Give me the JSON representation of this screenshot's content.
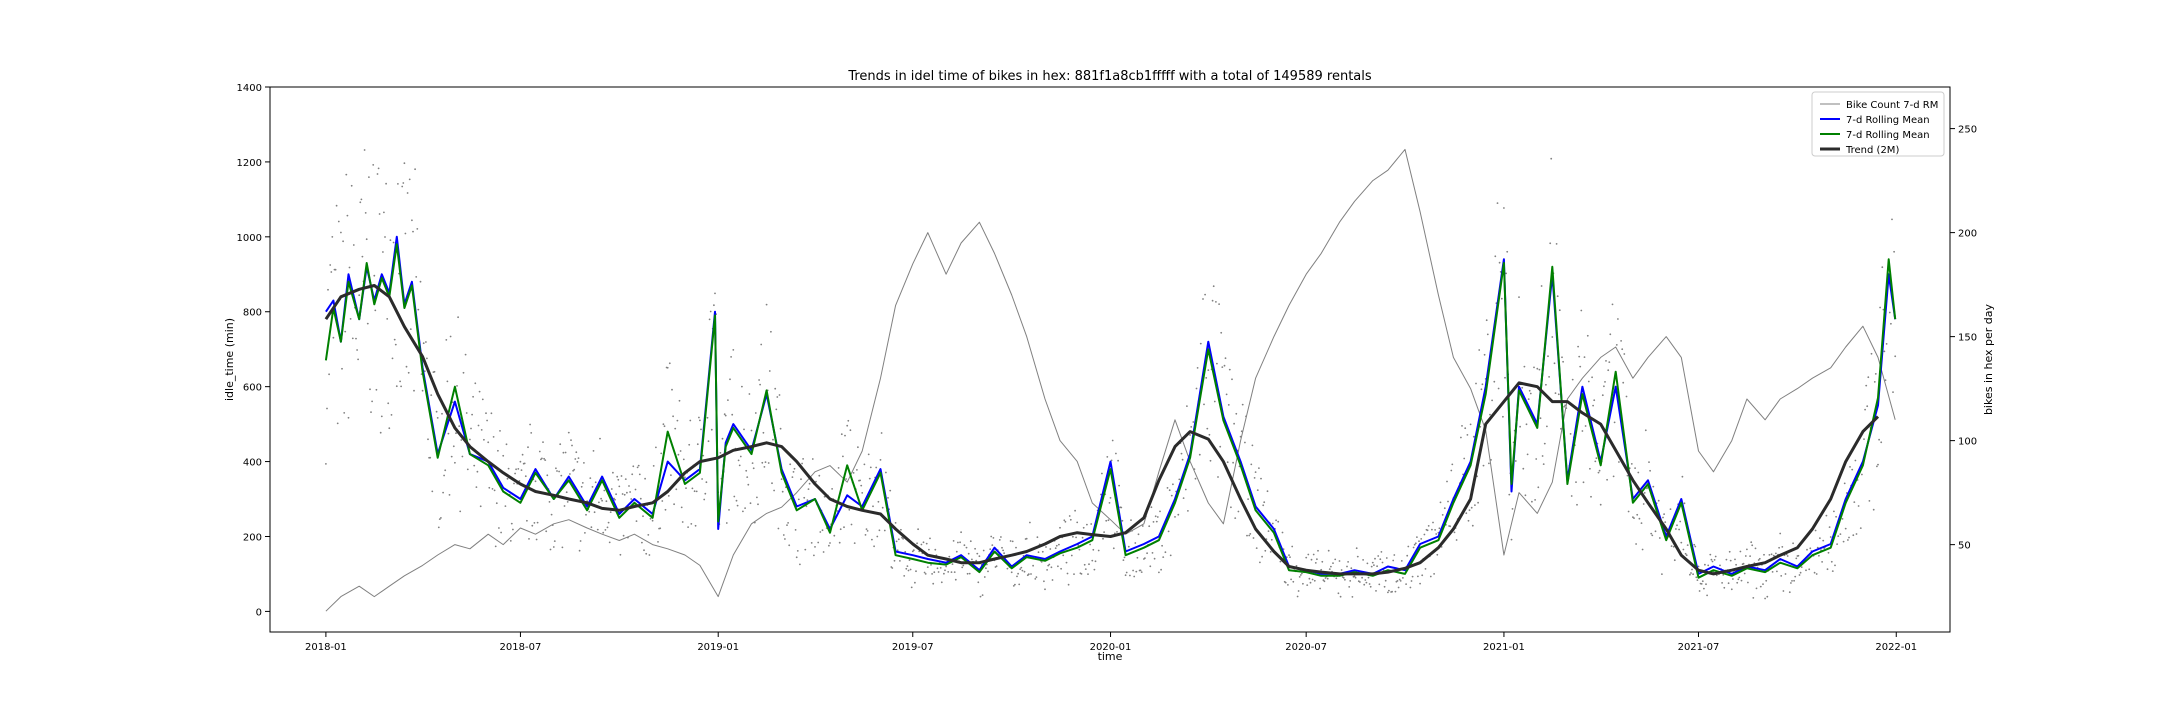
{
  "chart_data": {
    "type": "line",
    "title": "Trends in idel time of bikes in hex: 881f1a8cb1fffff with a total of 149589 rentals",
    "xlabel": "time",
    "ylabel": "idle_time (min)",
    "y2label": "bikes in hex per day",
    "xlim": [
      "2017-11-10",
      "2022-02-20"
    ],
    "ylim": [
      -55,
      1400
    ],
    "y2lim": [
      8,
      270
    ],
    "x_ticks": [
      "2018-01",
      "2018-07",
      "2019-01",
      "2019-07",
      "2020-01",
      "2020-07",
      "2021-01",
      "2021-07",
      "2022-01"
    ],
    "y_ticks": [
      0,
      200,
      400,
      600,
      800,
      1000,
      1200,
      1400
    ],
    "y2_ticks": [
      50,
      100,
      150,
      200,
      250
    ],
    "legend_position": "top-right",
    "colors": {
      "bike_count": "#808080",
      "rolling_blue": "#0000ff",
      "rolling_green": "#008000",
      "trend": "#2b2b2b",
      "scatter": "#808080"
    },
    "legend": [
      {
        "label": "Bike Count 7-d RM",
        "color": "#808080",
        "width": 1
      },
      {
        "label": "7-d Rolling Mean",
        "color": "#0000ff",
        "width": 2
      },
      {
        "label": "7-d Rolling Mean",
        "color": "#008000",
        "width": 2
      },
      {
        "label": "Trend (2M)",
        "color": "#2b2b2b",
        "width": 3
      }
    ],
    "series": [
      {
        "name": "Bike Count 7-d RM",
        "axis": "right",
        "x": [
          "2018-01-01",
          "2018-01-15",
          "2018-02-01",
          "2018-02-15",
          "2018-03-01",
          "2018-03-15",
          "2018-04-01",
          "2018-04-15",
          "2018-05-01",
          "2018-05-15",
          "2018-06-01",
          "2018-06-15",
          "2018-07-01",
          "2018-07-15",
          "2018-08-01",
          "2018-08-15",
          "2018-09-01",
          "2018-09-15",
          "2018-10-01",
          "2018-10-15",
          "2018-11-01",
          "2018-11-15",
          "2018-12-01",
          "2018-12-15",
          "2019-01-01",
          "2019-01-15",
          "2019-02-01",
          "2019-02-15",
          "2019-03-01",
          "2019-03-15",
          "2019-04-01",
          "2019-04-15",
          "2019-05-01",
          "2019-05-15",
          "2019-06-01",
          "2019-06-15",
          "2019-07-01",
          "2019-07-15",
          "2019-08-01",
          "2019-08-15",
          "2019-09-01",
          "2019-09-15",
          "2019-10-01",
          "2019-10-15",
          "2019-11-01",
          "2019-11-15",
          "2019-12-01",
          "2019-12-15",
          "2020-01-01",
          "2020-01-15",
          "2020-02-01",
          "2020-02-15",
          "2020-03-01",
          "2020-03-15",
          "2020-04-01",
          "2020-04-15",
          "2020-05-01",
          "2020-05-15",
          "2020-06-01",
          "2020-06-15",
          "2020-07-01",
          "2020-07-15",
          "2020-08-01",
          "2020-08-15",
          "2020-09-01",
          "2020-09-15",
          "2020-10-01",
          "2020-10-15",
          "2020-11-01",
          "2020-11-15",
          "2020-12-01",
          "2020-12-15",
          "2021-01-01",
          "2021-01-15",
          "2021-02-01",
          "2021-02-15",
          "2021-03-01",
          "2021-03-15",
          "2021-04-01",
          "2021-04-15",
          "2021-05-01",
          "2021-05-15",
          "2021-06-01",
          "2021-06-15",
          "2021-07-01",
          "2021-07-15",
          "2021-08-01",
          "2021-08-15",
          "2021-09-01",
          "2021-09-15",
          "2021-10-01",
          "2021-10-15",
          "2021-11-01",
          "2021-11-15",
          "2021-12-01",
          "2021-12-15",
          "2021-12-31"
        ],
        "values": [
          18,
          25,
          30,
          25,
          30,
          35,
          40,
          45,
          50,
          48,
          55,
          50,
          58,
          55,
          60,
          62,
          58,
          55,
          52,
          55,
          50,
          48,
          45,
          40,
          25,
          45,
          60,
          65,
          68,
          75,
          85,
          88,
          80,
          95,
          130,
          165,
          185,
          200,
          180,
          195,
          205,
          190,
          170,
          150,
          120,
          100,
          90,
          70,
          62,
          55,
          60,
          85,
          110,
          90,
          70,
          60,
          100,
          130,
          150,
          165,
          180,
          190,
          205,
          215,
          225,
          230,
          240,
          210,
          170,
          140,
          125,
          105,
          45,
          75,
          65,
          80,
          120,
          130,
          140,
          145,
          130,
          140,
          150,
          140,
          95,
          85,
          100,
          120,
          110,
          120,
          125,
          130,
          135,
          145,
          155,
          140,
          110
        ]
      },
      {
        "name": "7-d Rolling Mean",
        "axis": "left",
        "x": [
          "2018-01-01",
          "2018-01-08",
          "2018-01-15",
          "2018-01-22",
          "2018-02-01",
          "2018-02-08",
          "2018-02-15",
          "2018-02-22",
          "2018-03-01",
          "2018-03-08",
          "2018-03-15",
          "2018-03-22",
          "2018-04-01",
          "2018-04-15",
          "2018-05-01",
          "2018-05-15",
          "2018-06-01",
          "2018-06-15",
          "2018-07-01",
          "2018-07-15",
          "2018-08-01",
          "2018-08-15",
          "2018-09-01",
          "2018-09-15",
          "2018-10-01",
          "2018-10-15",
          "2018-11-01",
          "2018-11-15",
          "2018-12-01",
          "2018-12-15",
          "2018-12-29",
          "2019-01-01",
          "2019-01-08",
          "2019-01-15",
          "2019-02-01",
          "2019-02-15",
          "2019-03-01",
          "2019-03-15",
          "2019-04-01",
          "2019-04-15",
          "2019-05-01",
          "2019-05-15",
          "2019-06-01",
          "2019-06-15",
          "2019-07-01",
          "2019-07-15",
          "2019-08-01",
          "2019-08-15",
          "2019-09-01",
          "2019-09-15",
          "2019-10-01",
          "2019-10-15",
          "2019-11-01",
          "2019-11-15",
          "2019-12-01",
          "2019-12-15",
          "2020-01-01",
          "2020-01-15",
          "2020-02-01",
          "2020-02-15",
          "2020-03-01",
          "2020-03-15",
          "2020-04-01",
          "2020-04-15",
          "2020-05-01",
          "2020-05-15",
          "2020-06-01",
          "2020-06-15",
          "2020-07-01",
          "2020-07-15",
          "2020-08-01",
          "2020-08-15",
          "2020-09-01",
          "2020-09-15",
          "2020-10-01",
          "2020-10-15",
          "2020-11-01",
          "2020-11-15",
          "2020-12-01",
          "2020-12-15",
          "2021-01-01",
          "2021-01-08",
          "2021-01-15",
          "2021-02-01",
          "2021-02-15",
          "2021-03-01",
          "2021-03-15",
          "2021-04-01",
          "2021-04-15",
          "2021-05-01",
          "2021-05-15",
          "2021-06-01",
          "2021-06-15",
          "2021-07-01",
          "2021-07-15",
          "2021-08-01",
          "2021-08-15",
          "2021-09-01",
          "2021-09-15",
          "2021-10-01",
          "2021-10-15",
          "2021-11-01",
          "2021-11-15",
          "2021-12-01",
          "2021-12-15",
          "2021-12-25",
          "2021-12-31"
        ],
        "values": [
          800,
          830,
          720,
          900,
          780,
          920,
          830,
          900,
          850,
          1000,
          820,
          880,
          650,
          420,
          560,
          420,
          400,
          330,
          300,
          380,
          300,
          360,
          280,
          360,
          260,
          300,
          260,
          400,
          350,
          380,
          800,
          220,
          450,
          500,
          430,
          580,
          380,
          280,
          300,
          220,
          310,
          280,
          380,
          160,
          150,
          140,
          130,
          150,
          110,
          170,
          120,
          150,
          140,
          160,
          180,
          200,
          400,
          160,
          180,
          200,
          300,
          420,
          720,
          520,
          400,
          280,
          220,
          120,
          110,
          100,
          100,
          110,
          100,
          120,
          110,
          180,
          200,
          300,
          400,
          600,
          940,
          320,
          600,
          500,
          900,
          350,
          600,
          400,
          600,
          300,
          350,
          200,
          300,
          100,
          120,
          100,
          120,
          110,
          140,
          120,
          160,
          180,
          300,
          400,
          550,
          900,
          780
        ]
      },
      {
        "name": "7-d Rolling Mean",
        "axis": "left",
        "x": [
          "2018-01-01",
          "2018-01-08",
          "2018-01-15",
          "2018-01-22",
          "2018-02-01",
          "2018-02-08",
          "2018-02-15",
          "2018-02-22",
          "2018-03-01",
          "2018-03-08",
          "2018-03-15",
          "2018-03-22",
          "2018-04-01",
          "2018-04-15",
          "2018-05-01",
          "2018-05-15",
          "2018-06-01",
          "2018-06-15",
          "2018-07-01",
          "2018-07-15",
          "2018-08-01",
          "2018-08-15",
          "2018-09-01",
          "2018-09-15",
          "2018-10-01",
          "2018-10-15",
          "2018-11-01",
          "2018-11-15",
          "2018-12-01",
          "2018-12-15",
          "2018-12-29",
          "2019-01-01",
          "2019-01-08",
          "2019-01-15",
          "2019-02-01",
          "2019-02-15",
          "2019-03-01",
          "2019-03-15",
          "2019-04-01",
          "2019-04-15",
          "2019-05-01",
          "2019-05-15",
          "2019-06-01",
          "2019-06-15",
          "2019-07-01",
          "2019-07-15",
          "2019-08-01",
          "2019-08-15",
          "2019-09-01",
          "2019-09-15",
          "2019-10-01",
          "2019-10-15",
          "2019-11-01",
          "2019-11-15",
          "2019-12-01",
          "2019-12-15",
          "2020-01-01",
          "2020-01-15",
          "2020-02-01",
          "2020-02-15",
          "2020-03-01",
          "2020-03-15",
          "2020-04-01",
          "2020-04-15",
          "2020-05-01",
          "2020-05-15",
          "2020-06-01",
          "2020-06-15",
          "2020-07-01",
          "2020-07-15",
          "2020-08-01",
          "2020-08-15",
          "2020-09-01",
          "2020-09-15",
          "2020-10-01",
          "2020-10-15",
          "2020-11-01",
          "2020-11-15",
          "2020-12-01",
          "2020-12-15",
          "2021-01-01",
          "2021-01-08",
          "2021-01-15",
          "2021-02-01",
          "2021-02-15",
          "2021-03-01",
          "2021-03-15",
          "2021-04-01",
          "2021-04-15",
          "2021-05-01",
          "2021-05-15",
          "2021-06-01",
          "2021-06-15",
          "2021-07-01",
          "2021-07-15",
          "2021-08-01",
          "2021-08-15",
          "2021-09-01",
          "2021-09-15",
          "2021-10-01",
          "2021-10-15",
          "2021-11-01",
          "2021-11-15",
          "2021-12-01",
          "2021-12-15",
          "2021-12-25",
          "2021-12-31"
        ],
        "values": [
          670,
          810,
          720,
          880,
          780,
          930,
          820,
          890,
          840,
          980,
          810,
          870,
          640,
          410,
          600,
          420,
          390,
          320,
          290,
          370,
          300,
          350,
          270,
          350,
          250,
          290,
          250,
          480,
          340,
          370,
          790,
          240,
          440,
          490,
          420,
          590,
          370,
          270,
          300,
          210,
          390,
          270,
          370,
          150,
          140,
          130,
          125,
          145,
          105,
          160,
          115,
          145,
          135,
          155,
          170,
          190,
          380,
          150,
          170,
          190,
          290,
          410,
          700,
          510,
          390,
          270,
          210,
          110,
          105,
          95,
          95,
          105,
          95,
          110,
          100,
          170,
          190,
          290,
          390,
          580,
          930,
          340,
          590,
          490,
          920,
          340,
          580,
          390,
          640,
          290,
          340,
          190,
          290,
          90,
          110,
          95,
          115,
          105,
          130,
          115,
          150,
          170,
          290,
          390,
          570,
          940,
          780
        ]
      },
      {
        "name": "Trend (2M)",
        "axis": "left",
        "x": [
          "2018-01-01",
          "2018-01-15",
          "2018-02-01",
          "2018-02-15",
          "2018-03-01",
          "2018-03-15",
          "2018-04-01",
          "2018-04-15",
          "2018-05-01",
          "2018-05-15",
          "2018-06-01",
          "2018-06-15",
          "2018-07-01",
          "2018-07-15",
          "2018-08-01",
          "2018-08-15",
          "2018-09-01",
          "2018-09-15",
          "2018-10-01",
          "2018-10-15",
          "2018-11-01",
          "2018-11-15",
          "2018-12-01",
          "2018-12-15",
          "2019-01-01",
          "2019-01-15",
          "2019-02-01",
          "2019-02-15",
          "2019-03-01",
          "2019-03-15",
          "2019-04-01",
          "2019-04-15",
          "2019-05-01",
          "2019-05-15",
          "2019-06-01",
          "2019-06-15",
          "2019-07-01",
          "2019-07-15",
          "2019-08-01",
          "2019-08-15",
          "2019-09-01",
          "2019-09-15",
          "2019-10-01",
          "2019-10-15",
          "2019-11-01",
          "2019-11-15",
          "2019-12-01",
          "2019-12-15",
          "2020-01-01",
          "2020-01-15",
          "2020-02-01",
          "2020-02-15",
          "2020-03-01",
          "2020-03-15",
          "2020-04-01",
          "2020-04-15",
          "2020-05-01",
          "2020-05-15",
          "2020-06-01",
          "2020-06-15",
          "2020-07-01",
          "2020-07-15",
          "2020-08-01",
          "2020-08-15",
          "2020-09-01",
          "2020-09-15",
          "2020-10-01",
          "2020-10-15",
          "2020-11-01",
          "2020-11-15",
          "2020-12-01",
          "2020-12-15",
          "2021-01-01",
          "2021-01-15",
          "2021-02-01",
          "2021-02-15",
          "2021-03-01",
          "2021-03-15",
          "2021-04-01",
          "2021-04-15",
          "2021-05-01",
          "2021-05-15",
          "2021-06-01",
          "2021-06-15",
          "2021-07-01",
          "2021-07-15",
          "2021-08-01",
          "2021-08-15",
          "2021-09-01",
          "2021-09-15",
          "2021-10-01",
          "2021-10-15",
          "2021-11-01",
          "2021-11-15",
          "2021-12-01",
          "2021-12-15"
        ],
        "values": [
          780,
          840,
          860,
          870,
          840,
          760,
          680,
          580,
          490,
          440,
          400,
          370,
          340,
          320,
          310,
          300,
          290,
          275,
          270,
          280,
          290,
          320,
          370,
          400,
          410,
          430,
          440,
          450,
          440,
          400,
          340,
          300,
          280,
          270,
          260,
          220,
          180,
          150,
          140,
          130,
          130,
          140,
          150,
          160,
          180,
          200,
          210,
          205,
          200,
          210,
          250,
          350,
          440,
          480,
          460,
          400,
          300,
          220,
          160,
          120,
          110,
          105,
          100,
          100,
          100,
          105,
          115,
          130,
          170,
          220,
          300,
          500,
          560,
          610,
          600,
          560,
          560,
          530,
          500,
          430,
          350,
          290,
          220,
          150,
          110,
          100,
          110,
          120,
          130,
          150,
          170,
          220,
          300,
          400,
          480,
          520
        ]
      }
    ]
  }
}
